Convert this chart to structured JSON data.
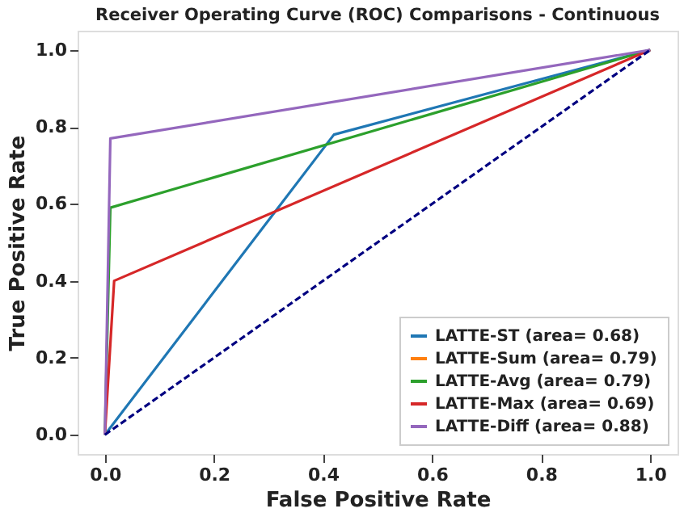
{
  "chart_data": {
    "type": "line",
    "title": "Receiver Operating Curve (ROC) Comparisons - Continuous",
    "xlabel": "False Positive Rate",
    "ylabel": "True Positive Rate",
    "series": [
      {
        "name": "LATTE-ST (area= 0.68)",
        "color": "#1f77b4",
        "x": [
          0,
          0.42,
          1
        ],
        "values": [
          0,
          0.78,
          1
        ]
      },
      {
        "name": "LATTE-Sum (area= 0.79)",
        "color": "#ff7f0e"
      },
      {
        "name": "LATTE-Avg (area= 0.79)",
        "color": "#2ca02c",
        "x": [
          0,
          0.01,
          1
        ],
        "values": [
          0,
          0.59,
          1
        ]
      },
      {
        "name": "LATTE-Max (area= 0.69)",
        "color": "#d62728",
        "x": [
          0,
          0.017,
          1
        ],
        "values": [
          0,
          0.4,
          1
        ]
      },
      {
        "name": "LATTE-Diff (area= 0.88)",
        "color": "#9467bd",
        "x": [
          0,
          0.01,
          1
        ],
        "values": [
          0,
          0.77,
          1
        ]
      },
      {
        "color": "#000080",
        "x": [
          0,
          1
        ],
        "values": [
          0,
          1
        ],
        "line_style": "dashed"
      }
    ],
    "xlim": [
      -0.05,
      1.05
    ],
    "ylim": [
      -0.05,
      1.05
    ],
    "xticks": [
      {
        "value": 0,
        "label": "0.0"
      },
      0.2,
      0.4,
      0.6,
      0.8,
      {
        "value": 1,
        "label": "1.0"
      }
    ],
    "yticks": [
      {
        "value": 0,
        "label": "0.0"
      },
      0.2,
      0.4,
      0.6,
      0.8,
      {
        "value": 1,
        "label": "1.0"
      }
    ],
    "grid": false,
    "legend": "bottom right",
    "marker": "none",
    "line_style": "solid"
  }
}
